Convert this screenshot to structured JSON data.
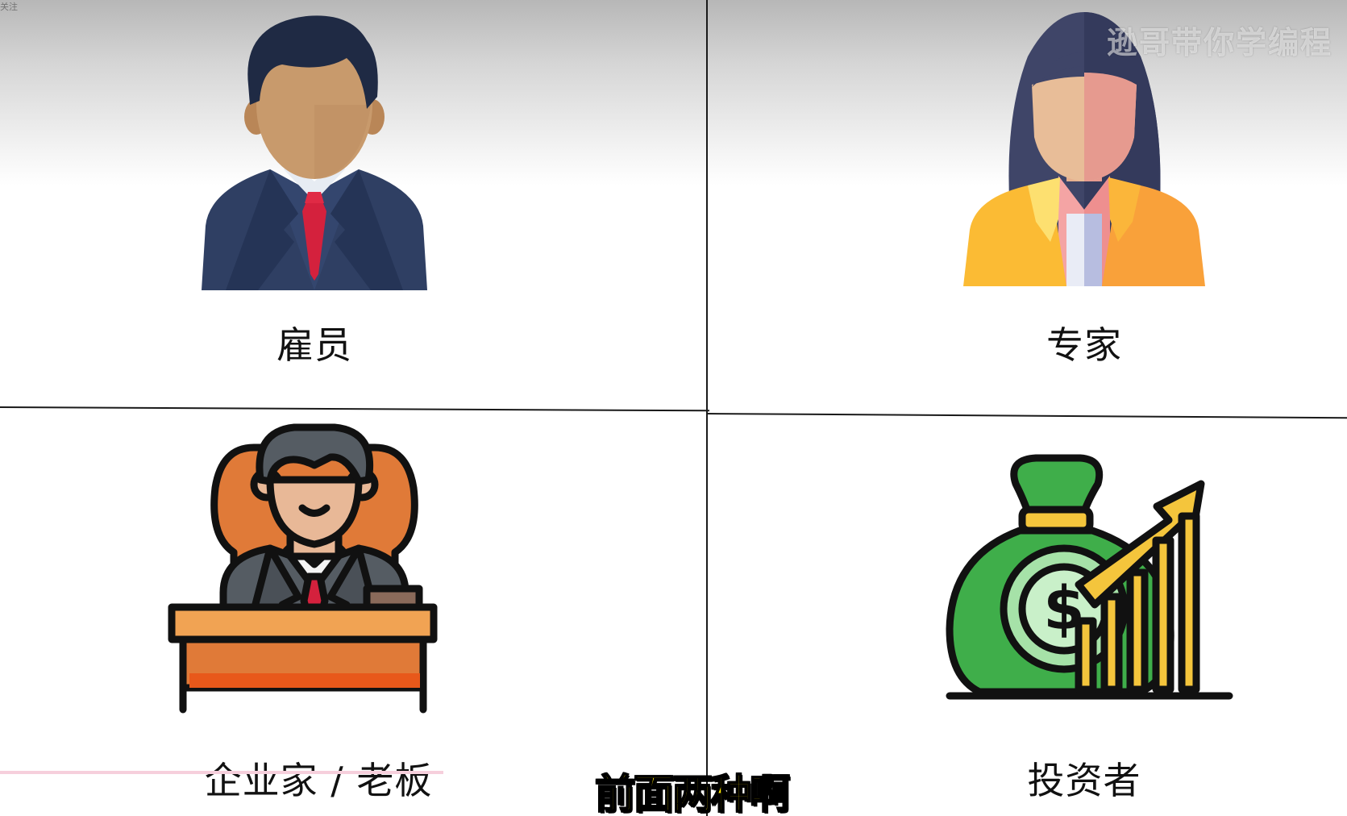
{
  "watermark": "逊哥带你学编程",
  "corner_mark": "关注",
  "cards": [
    {
      "label": "雇员",
      "icon": "employee-icon"
    },
    {
      "label": "专家",
      "icon": "expert-icon"
    },
    {
      "label": "企业家 / 老板",
      "icon": "entrepreneur-icon"
    },
    {
      "label": "投资者",
      "icon": "investor-icon"
    }
  ],
  "subtitle": "前面两种啊",
  "colors": {
    "suit_navy": "#2f3f63",
    "tie_red": "#d4213d",
    "hair_dark": "#1f2a44",
    "skin": "#c89a6c",
    "blazer_yellow": "#fbbb34",
    "chair_orange": "#e07a38",
    "money_green": "#3fae4a",
    "subtitle_yellow": "#ffe600"
  }
}
